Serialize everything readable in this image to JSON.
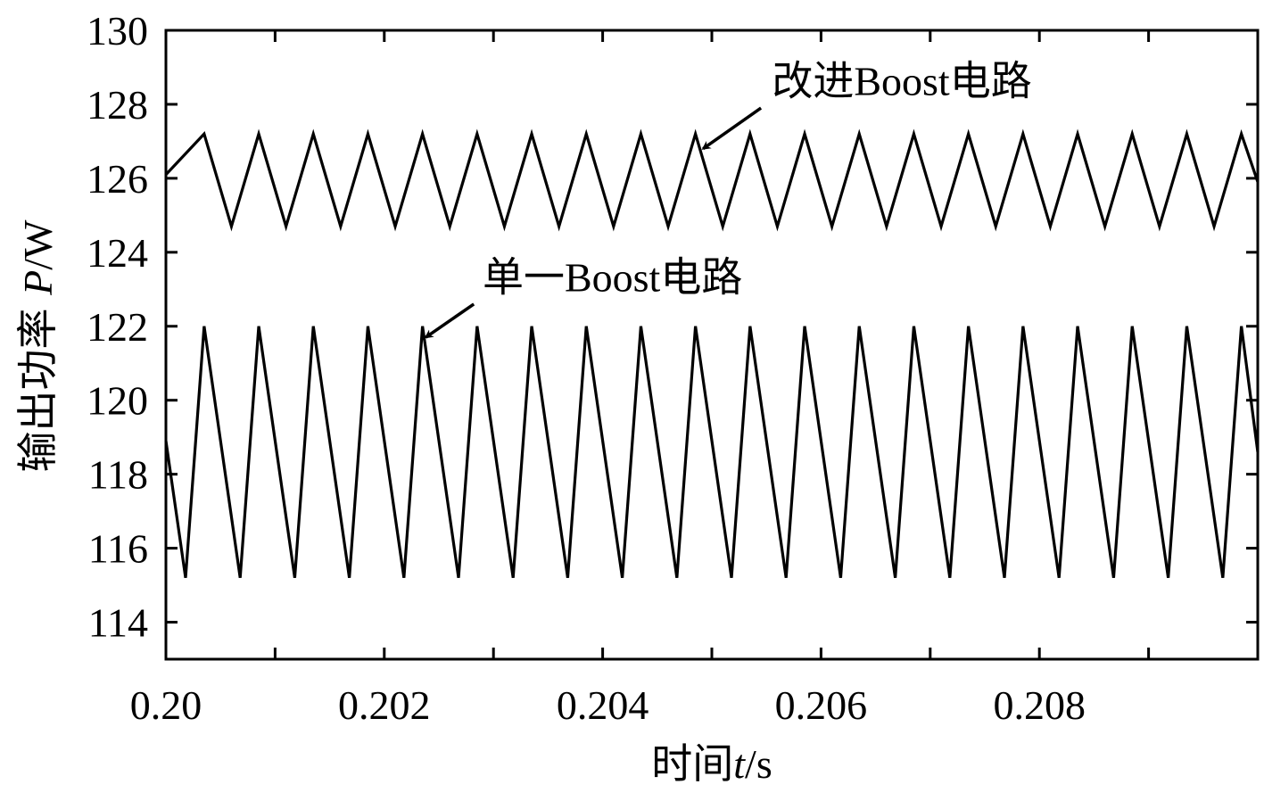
{
  "chart_data": {
    "type": "line",
    "title": "",
    "xlabel": {
      "prefix": "时间",
      "var": "t",
      "unit": "/s"
    },
    "ylabel": {
      "prefix": "输出功率 ",
      "var": "P",
      "unit": "/W"
    },
    "xlim": [
      0.2,
      0.21
    ],
    "ylim": [
      113,
      130
    ],
    "x_ticks": [
      0.2,
      0.201,
      0.202,
      0.203,
      0.204,
      0.205,
      0.206,
      0.207,
      0.208,
      0.209
    ],
    "x_tick_labels": [
      "0.20",
      "",
      "0.202",
      "",
      "0.204",
      "",
      "0.206",
      "",
      "0.208",
      ""
    ],
    "y_ticks": [
      114,
      116,
      118,
      120,
      122,
      124,
      126,
      128,
      130
    ],
    "y_tick_labels": [
      "114",
      "116",
      "118",
      "120",
      "122",
      "124",
      "126",
      "128",
      "130"
    ],
    "grid": false,
    "series": [
      {
        "name": "改进Boost电路",
        "period": 0.0005,
        "max": 127.2,
        "min": 124.7,
        "first_peak": 0.20035,
        "first_trough": 0.2006,
        "start_value": 126.1,
        "end_value": 125.9
      },
      {
        "name": "单一Boost电路",
        "period": 0.0005,
        "max": 122.0,
        "min": 115.2,
        "first_peak": 0.20035,
        "first_trough": 0.20018,
        "start_value": 118.9,
        "end_value": 118.6
      }
    ],
    "annotations": [
      {
        "name": "annotation-improved",
        "prefix": "改进",
        "latin": "Boost",
        "suffix": "电路",
        "text_x": 0.20555,
        "text_y": 128.25,
        "arrow_from": [
          0.20545,
          127.9
        ],
        "arrow_to": [
          0.20492,
          126.8
        ]
      },
      {
        "name": "annotation-single",
        "prefix": "单一",
        "latin": "Boost",
        "suffix": "电路",
        "text_x": 0.2029,
        "text_y": 122.95,
        "arrow_from": [
          0.20282,
          122.6
        ],
        "arrow_to": [
          0.20238,
          121.7
        ]
      }
    ]
  }
}
